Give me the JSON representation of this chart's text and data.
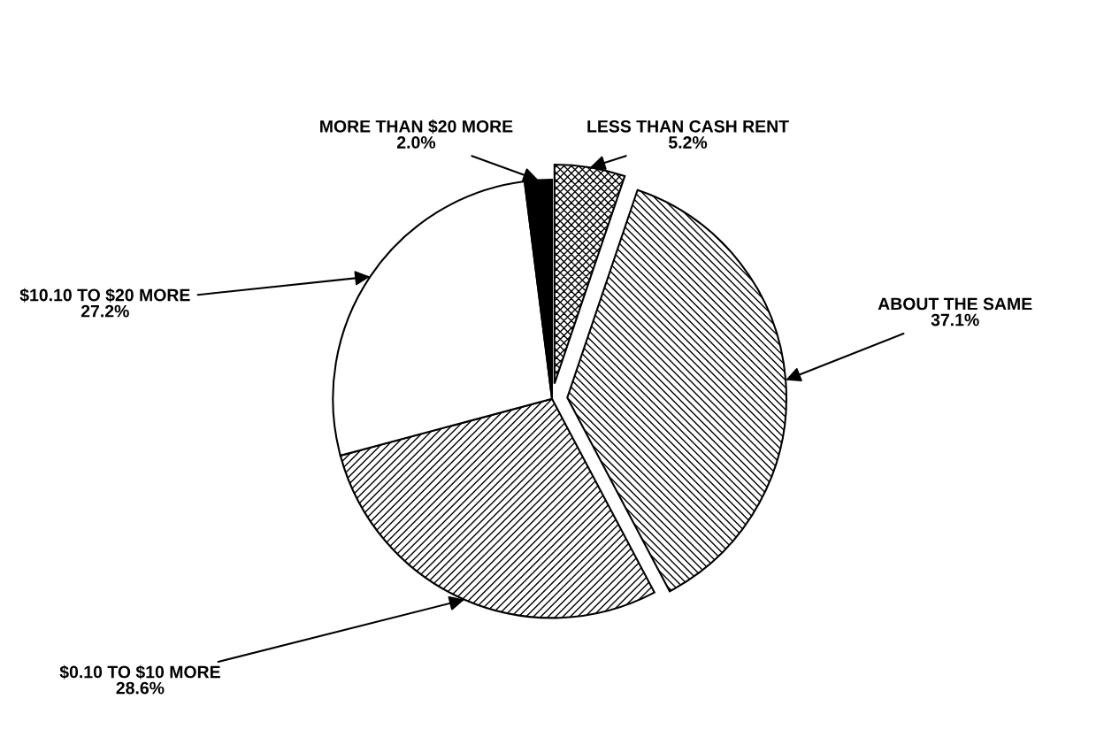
{
  "chart_data": {
    "type": "pie",
    "categories": [
      "LESS THAN CASH RENT",
      "ABOUT THE SAME",
      "$0.10 TO $10 MORE",
      "$10.10 TO $20 MORE",
      "MORE THAN $20 MORE"
    ],
    "values": [
      5.2,
      37.1,
      28.6,
      27.2,
      2.0
    ],
    "colors": [
      "#ffffff",
      "#ffffff",
      "#ffffff",
      "#ffffff",
      "#000000"
    ],
    "value_labels": [
      "5.2%",
      "37.1%",
      "28.6%",
      "27.2%",
      "2.0%"
    ]
  }
}
